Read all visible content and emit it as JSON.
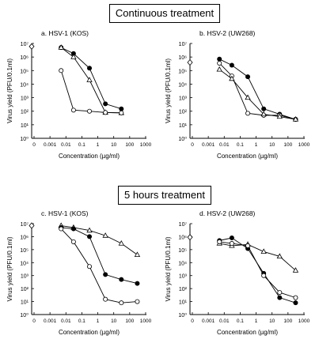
{
  "headers": {
    "top": "Continuous treatment",
    "bottom": "5 hours treatment"
  },
  "axis_common": {
    "ylabel": "Virus yield (PFU/0.1ml)",
    "xlabel": "Concentration (µg/ml)",
    "x_ticks": [
      "0",
      "0.001",
      "0.01",
      "0.1",
      "1",
      "10",
      "100",
      "1000"
    ],
    "y_ticks": [
      "10⁰",
      "10¹",
      "10²",
      "10³",
      "10⁴",
      "10⁵",
      "10⁶",
      "10⁷"
    ],
    "x_scale": "log",
    "y_scale": "log",
    "xlim": [
      0.001,
      1000
    ],
    "ylim": [
      1,
      10000000
    ]
  },
  "chart_data": [
    {
      "type": "line",
      "title": "a. HSV-1 (KOS)",
      "xlabel": "Concentration (µg/ml)",
      "ylabel": "Virus yield (PFU/0.1ml)",
      "x_scale": "log",
      "y_scale": "log",
      "xlim": [
        0.001,
        1000
      ],
      "ylim": [
        1,
        10000000
      ],
      "control": 6000000,
      "series": [
        {
          "marker": "filled-circle",
          "x": [
            0.005,
            0.03,
            0.3,
            3,
            30
          ],
          "y": [
            5000000,
            1800000,
            150000,
            350,
            150
          ]
        },
        {
          "marker": "triangle",
          "x": [
            0.005,
            0.03,
            0.3,
            3,
            30
          ],
          "y": [
            5000000,
            1000000,
            20000,
            80,
            75
          ]
        },
        {
          "marker": "open-circle",
          "x": [
            0.005,
            0.03,
            0.3,
            3,
            30
          ],
          "y": [
            100000,
            120,
            100,
            80,
            75
          ]
        }
      ]
    },
    {
      "type": "line",
      "title": "b. HSV-2 (UW268)",
      "xlabel": "Concentration (µg/ml)",
      "ylabel": "Virus yield (PFU/0.1ml)",
      "x_scale": "log",
      "y_scale": "log",
      "xlim": [
        0.001,
        1000
      ],
      "ylim": [
        1,
        10000000
      ],
      "control": 400000,
      "series": [
        {
          "marker": "filled-circle",
          "x": [
            0.005,
            0.03,
            0.3,
            3,
            30,
            300
          ],
          "y": [
            700000,
            250000,
            35000,
            150,
            60,
            25
          ]
        },
        {
          "marker": "open-circle",
          "x": [
            0.005,
            0.03,
            0.3,
            3,
            30,
            300
          ],
          "y": [
            350000,
            40000,
            70,
            50,
            50,
            25
          ]
        },
        {
          "marker": "triangle",
          "x": [
            0.005,
            0.03,
            0.3,
            3,
            30,
            300
          ],
          "y": [
            120000,
            25000,
            1000,
            60,
            40,
            25
          ]
        }
      ]
    },
    {
      "type": "line",
      "title": "c. HSV-1 (KOS)",
      "xlabel": "Concentration (µg/ml)",
      "ylabel": "Virus yield (PFU/0.1ml)",
      "x_scale": "log",
      "y_scale": "log",
      "xlim": [
        0.001,
        1000
      ],
      "ylim": [
        1,
        10000000
      ],
      "control": 7000000,
      "series": [
        {
          "marker": "triangle",
          "x": [
            0.005,
            0.03,
            0.3,
            3,
            30,
            300
          ],
          "y": [
            7000000,
            5000000,
            3000000,
            1200000,
            300000,
            40000
          ]
        },
        {
          "marker": "filled-circle",
          "x": [
            0.005,
            0.03,
            0.3,
            3,
            30,
            300
          ],
          "y": [
            5000000,
            4000000,
            1000000,
            1200,
            500,
            250
          ]
        },
        {
          "marker": "open-circle",
          "x": [
            0.005,
            0.03,
            0.3,
            3,
            30,
            300
          ],
          "y": [
            4000000,
            400000,
            5000,
            15,
            8,
            10
          ]
        }
      ]
    },
    {
      "type": "line",
      "title": "d. HSV-2 (UW268)",
      "xlabel": "Concentration (µg/ml)",
      "ylabel": "Virus yield (PFU/0.1ml)",
      "x_scale": "log",
      "y_scale": "log",
      "xlim": [
        0.001,
        1000
      ],
      "ylim": [
        1,
        10000000
      ],
      "control": 900000,
      "series": [
        {
          "marker": "filled-circle",
          "x": [
            0.005,
            0.03,
            0.3,
            3,
            30,
            300
          ],
          "y": [
            500000,
            800000,
            120000,
            1500,
            20,
            8
          ]
        },
        {
          "marker": "triangle",
          "x": [
            0.005,
            0.03,
            0.3,
            3,
            30,
            300
          ],
          "y": [
            300000,
            200000,
            250000,
            70000,
            30000,
            2500
          ]
        },
        {
          "marker": "open-circle",
          "x": [
            0.005,
            0.03,
            0.3,
            3,
            30,
            300
          ],
          "y": [
            400000,
            300000,
            200000,
            1000,
            50,
            20
          ]
        }
      ]
    }
  ]
}
